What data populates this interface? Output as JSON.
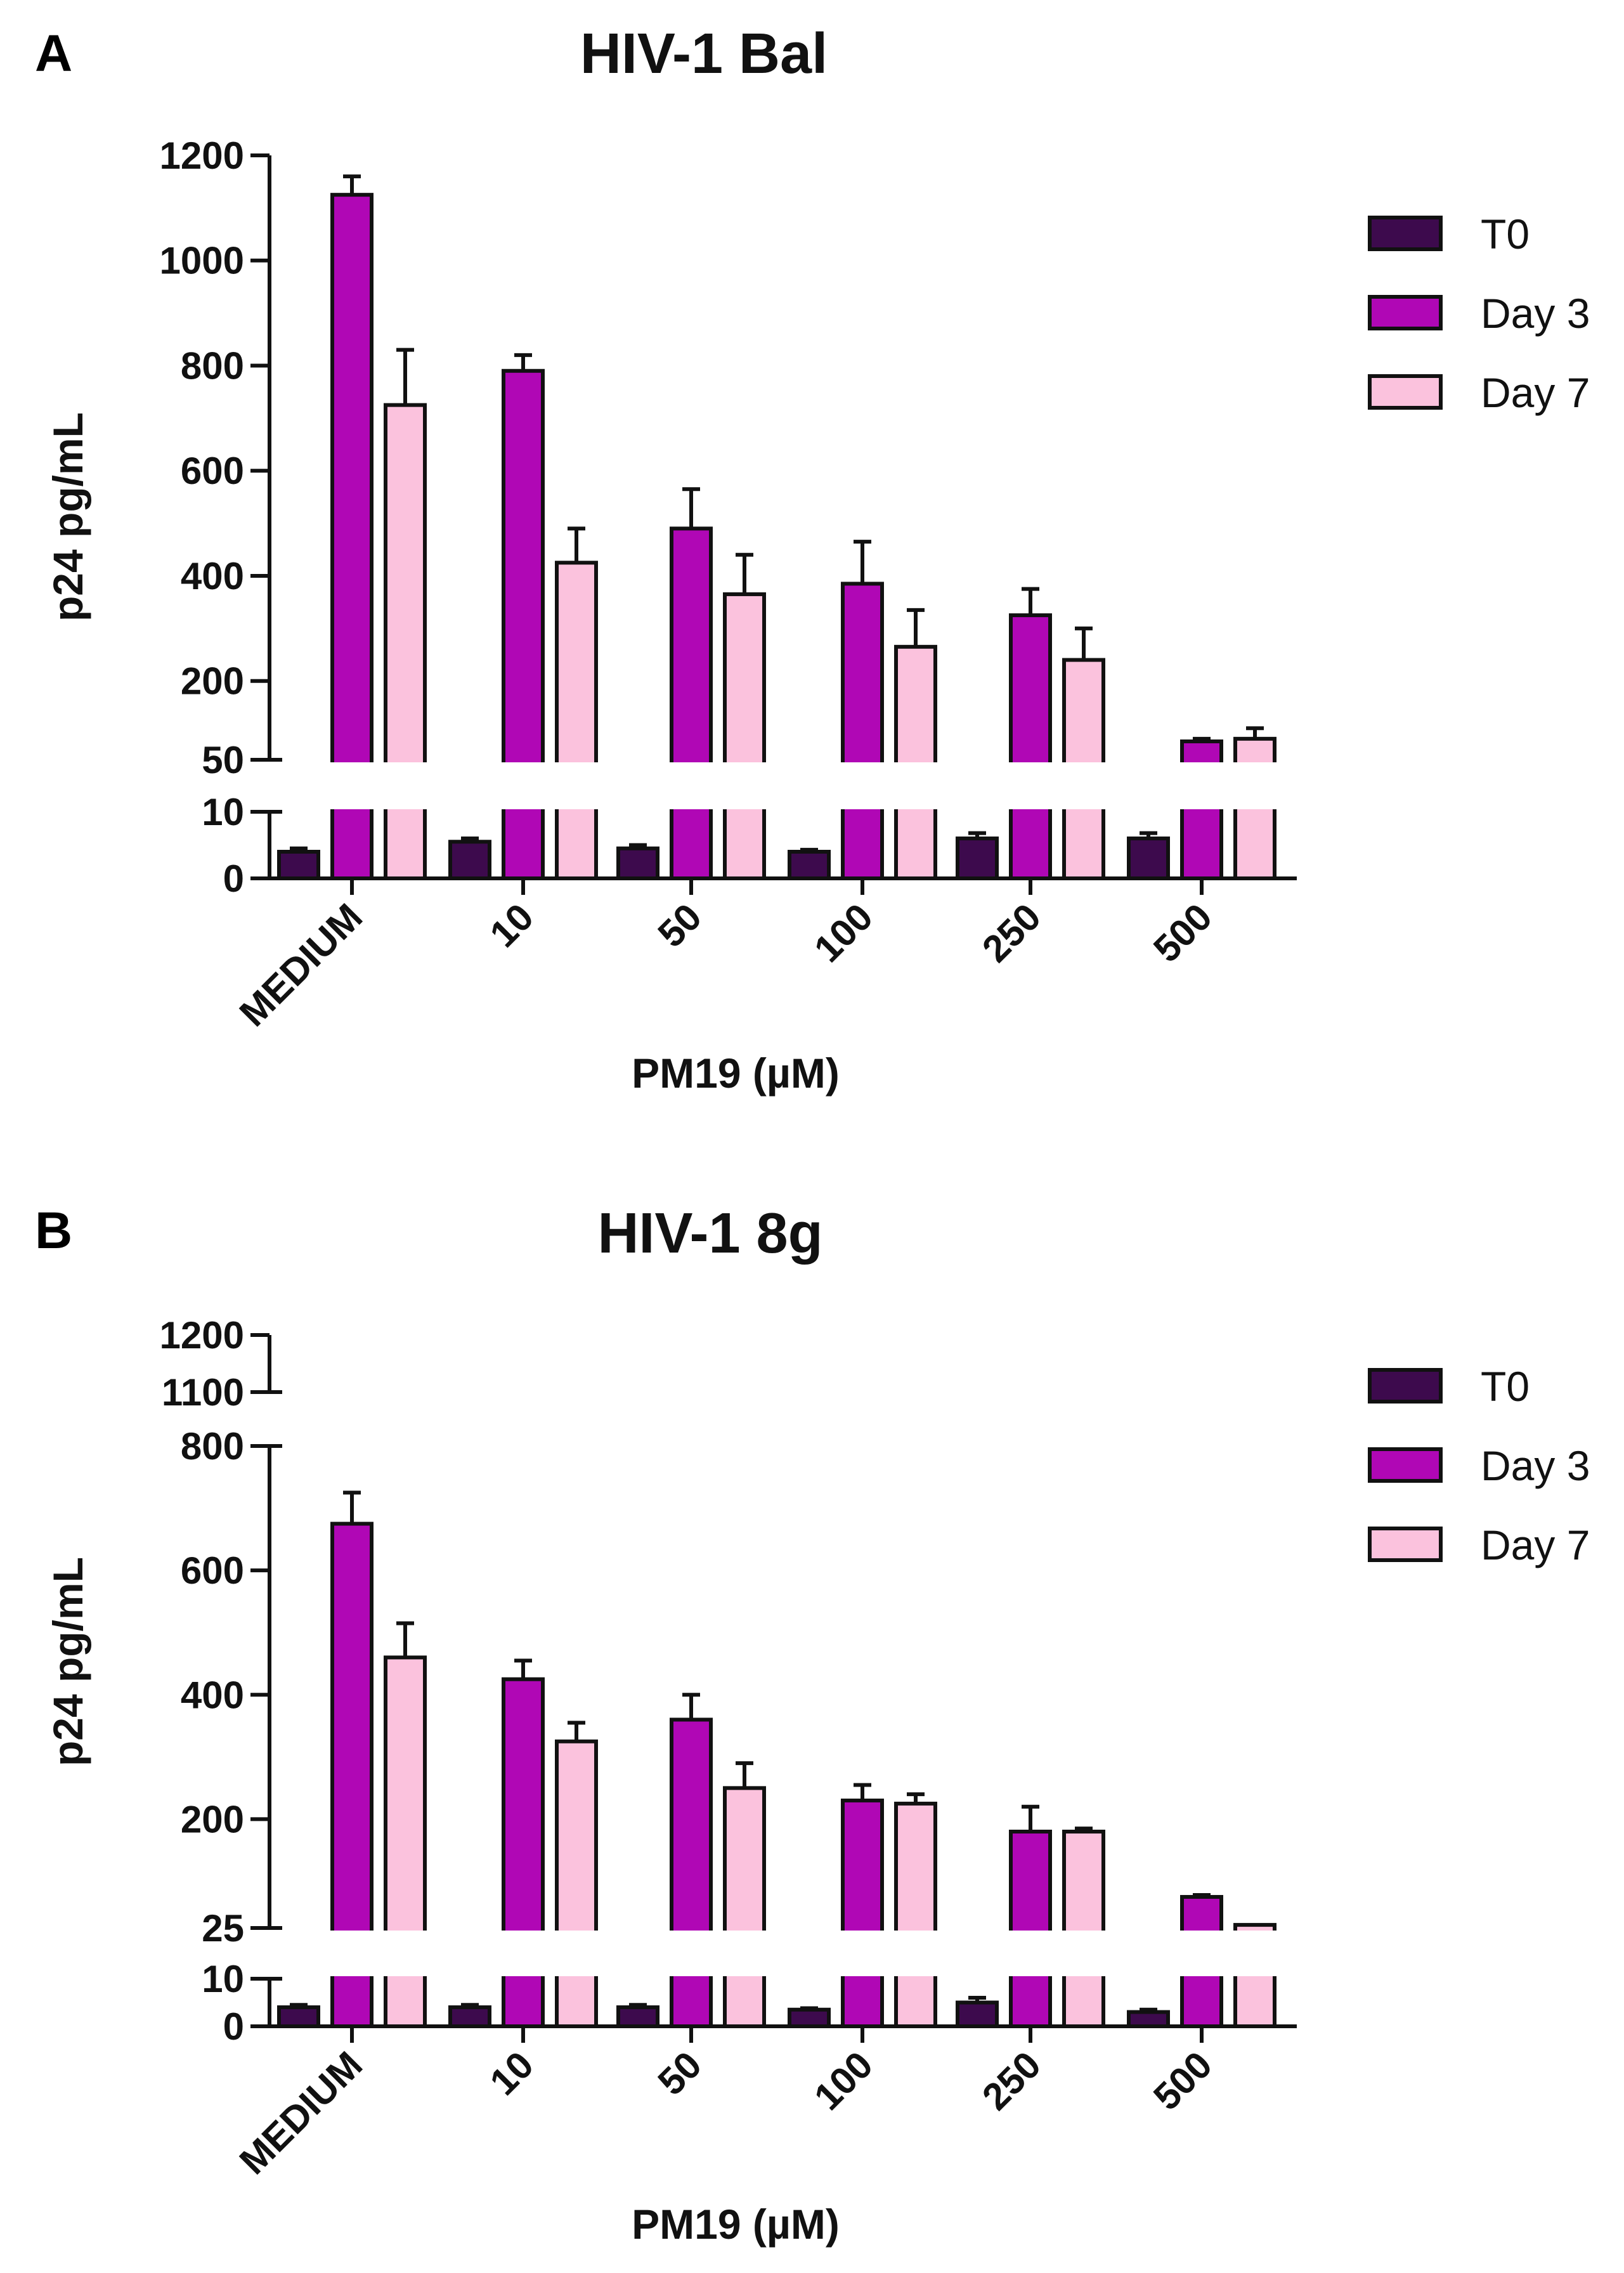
{
  "chart_data": [
    {
      "panel_letter": "A",
      "type": "bar",
      "title": "HIV-1 Bal",
      "xlabel": "PM19 (µM)",
      "ylabel": "p24 pg/mL",
      "categories": [
        "MEDIUM",
        "10",
        "50",
        "100",
        "250",
        "500"
      ],
      "y_axis_break": {
        "lower_segment": [
          0,
          10
        ],
        "upper_segment": [
          50,
          1200
        ]
      },
      "y_ticks_lower": [
        "0",
        "10"
      ],
      "y_ticks_upper": [
        "50",
        "200",
        "400",
        "600",
        "800",
        "1000",
        "1200"
      ],
      "series": [
        {
          "name": "T0",
          "color": "#3d0a4d",
          "values": [
            4,
            5.5,
            4.5,
            4,
            6,
            6
          ],
          "errors": [
            0.5,
            0.5,
            0.5,
            0.3,
            0.8,
            0.8
          ]
        },
        {
          "name": "Day 3",
          "color": "#b007b5",
          "values": [
            1125,
            790,
            490,
            385,
            325,
            85
          ],
          "errors": [
            35,
            30,
            75,
            80,
            50,
            5
          ]
        },
        {
          "name": "Day 7",
          "color": "#fbc2dd",
          "values": [
            725,
            425,
            365,
            265,
            240,
            90
          ],
          "errors": [
            105,
            65,
            75,
            70,
            60,
            20
          ]
        }
      ]
    },
    {
      "panel_letter": "B",
      "type": "bar",
      "title": "HIV-1 8g",
      "xlabel": "PM19 (µM)",
      "ylabel": "p24 pg/mL",
      "categories": [
        "MEDIUM",
        "10",
        "50",
        "100",
        "250",
        "500"
      ],
      "y_axis_break": {
        "lower_segment": [
          0,
          10
        ],
        "middle_segment": [
          25,
          800
        ],
        "upper_segment": [
          1100,
          1200
        ]
      },
      "y_ticks_lower": [
        "0",
        "10"
      ],
      "y_ticks_upper": [
        "25",
        "200",
        "400",
        "600",
        "800",
        "1100",
        "1200"
      ],
      "series": [
        {
          "name": "T0",
          "color": "#3d0a4d",
          "values": [
            4,
            4,
            4,
            3.5,
            5,
            3
          ],
          "errors": [
            0.5,
            0.5,
            0.5,
            0.3,
            1,
            0.5
          ]
        },
        {
          "name": "Day 3",
          "color": "#b007b5",
          "values": [
            675,
            425,
            360,
            230,
            180,
            75
          ],
          "errors": [
            50,
            30,
            40,
            25,
            40,
            3
          ]
        },
        {
          "name": "Day 7",
          "color": "#fbc2dd",
          "values": [
            460,
            325,
            250,
            225,
            180,
            30
          ],
          "errors": [
            55,
            30,
            40,
            15,
            5,
            2
          ]
        }
      ]
    }
  ]
}
